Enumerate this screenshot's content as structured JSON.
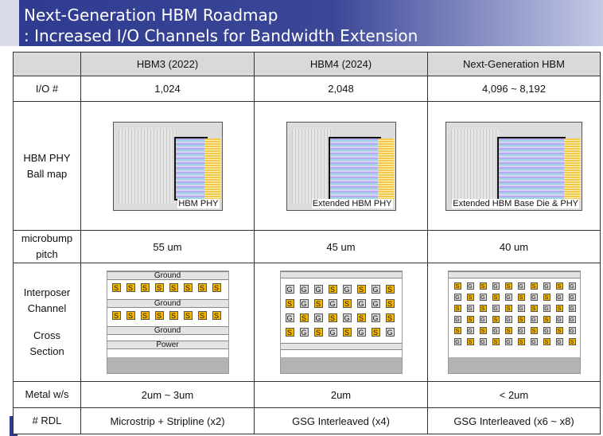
{
  "title": {
    "line1": "Next-Generation HBM Roadmap",
    "line2": ": Increased I/O Channels for Bandwidth Extension"
  },
  "columns": [
    "HBM3 (2022)",
    "HBM4 (2024)",
    "Next-Generation HBM"
  ],
  "rows": {
    "io": {
      "label": "I/O #",
      "values": [
        "1,024",
        "2,048",
        "4,096 ~ 8,192"
      ]
    },
    "ballmap": {
      "label_line1": "HBM PHY",
      "label_line2": "Ball map",
      "captions": [
        "HBM PHY",
        "Extended HBM PHY",
        "Extended HBM Base Die & PHY"
      ]
    },
    "pitch": {
      "label_line1": "microbump",
      "label_line2": "pitch",
      "values": [
        "55 um",
        "45 um",
        "40 um"
      ]
    },
    "interposer": {
      "label_line1": "Interposer",
      "label_line2": "Channel",
      "label_line3": "Cross",
      "label_line4": "Section",
      "hbm3_layers": {
        "ground1": "Ground",
        "ground2": "Ground",
        "ground3": "Ground",
        "power": "Power"
      },
      "hbm3_rows": [
        [
          "S",
          "S",
          "S",
          "S",
          "S",
          "S",
          "S",
          "S"
        ],
        [
          "S",
          "S",
          "S",
          "S",
          "S",
          "S",
          "S",
          "S"
        ]
      ],
      "hbm4_rows": [
        [
          "G",
          "G",
          "G",
          "S",
          "G",
          "S",
          "G",
          "S"
        ],
        [
          "S",
          "G",
          "S",
          "G",
          "S",
          "G",
          "G",
          "S"
        ],
        [
          "G",
          "S",
          "G",
          "S",
          "G",
          "S",
          "G",
          "S"
        ],
        [
          "S",
          "G",
          "S",
          "G",
          "S",
          "G",
          "S",
          "G"
        ]
      ],
      "next_rows": [
        [
          "S",
          "G",
          "S",
          "G",
          "S",
          "G",
          "S",
          "G",
          "S",
          "G"
        ],
        [
          "G",
          "S",
          "G",
          "S",
          "G",
          "S",
          "G",
          "S",
          "G",
          "G"
        ],
        [
          "S",
          "G",
          "S",
          "G",
          "S",
          "G",
          "S",
          "G",
          "S",
          "G"
        ],
        [
          "G",
          "S",
          "G",
          "S",
          "G",
          "S",
          "G",
          "S",
          "G",
          "G"
        ],
        [
          "S",
          "G",
          "S",
          "G",
          "S",
          "G",
          "S",
          "G",
          "S",
          "G"
        ],
        [
          "G",
          "S",
          "G",
          "S",
          "G",
          "S",
          "G",
          "S",
          "G",
          "S"
        ]
      ]
    },
    "metal": {
      "label": "Metal w/s",
      "values": [
        "2um ~ 3um",
        "2um",
        "< 2um"
      ]
    },
    "rdl": {
      "label": "# RDL",
      "values": [
        "Microstrip + Stripline (x2)",
        "GSG Interleaved (x4)",
        "GSG Interleaved (x6 ~ x8)"
      ]
    }
  },
  "colors": {
    "header_bg": "#2e3b8f",
    "signal_pad": "#f2b705",
    "ground_pad": "#d6d6d6",
    "table_header": "#d9d9d9"
  }
}
